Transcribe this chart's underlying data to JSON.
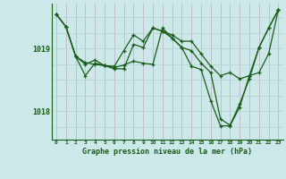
{
  "xlabel": "Graphe pression niveau de la mer (hPa)",
  "background_color": "#cce8e8",
  "grid_color_v": "#b8d4d4",
  "grid_color_h": "#c0b8c8",
  "line_color": "#1a5c1a",
  "xlim": [
    -0.5,
    23.5
  ],
  "ylim": [
    1017.55,
    1019.72
  ],
  "yticks": [
    1018,
    1019
  ],
  "xticks": [
    0,
    1,
    2,
    3,
    4,
    5,
    6,
    7,
    8,
    9,
    10,
    11,
    12,
    13,
    14,
    15,
    16,
    17,
    18,
    19,
    20,
    21,
    22,
    23
  ],
  "series": [
    [
      1019.55,
      1019.35,
      1018.88,
      1018.75,
      1018.82,
      1018.73,
      1018.68,
      1018.68,
      1019.07,
      1019.02,
      1019.33,
      1019.28,
      1019.22,
      1019.12,
      1019.12,
      1018.92,
      1018.72,
      1018.57,
      1018.62,
      1018.52,
      1018.57,
      1018.62,
      1018.92,
      1019.62
    ],
    [
      1019.55,
      1019.35,
      1018.88,
      1018.78,
      1018.75,
      1018.73,
      1018.72,
      1018.97,
      1019.22,
      1019.12,
      1019.33,
      1019.28,
      1019.17,
      1019.02,
      1018.97,
      1018.77,
      1018.62,
      1017.88,
      1017.78,
      1018.12,
      1018.52,
      1019.02,
      1019.33,
      1019.62
    ],
    [
      1019.55,
      1019.35,
      1018.88,
      1018.57,
      1018.77,
      1018.73,
      1018.7,
      1018.74,
      1018.8,
      1018.77,
      1018.75,
      1019.33,
      1019.17,
      1019.02,
      1018.72,
      1018.67,
      1018.17,
      1017.77,
      1017.77,
      1018.07,
      1018.57,
      1019.02,
      1019.33,
      1019.62
    ]
  ]
}
